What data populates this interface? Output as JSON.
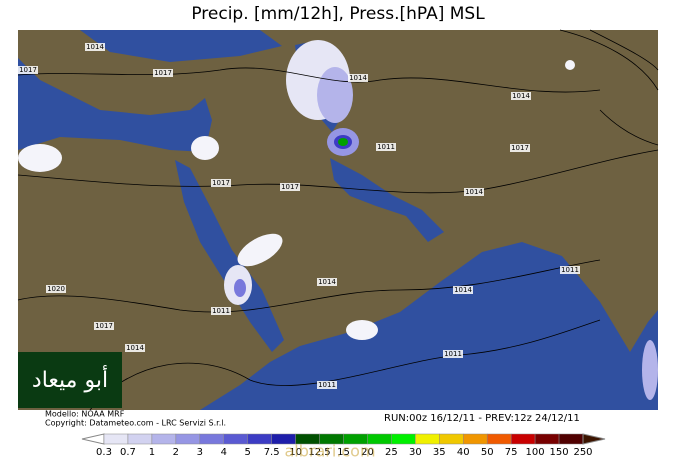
{
  "title": "Precip. [mm/12h], Press.[hPA] MSL",
  "isobar_labels": [
    "1014",
    "1017",
    "1017",
    "1014",
    "1014",
    "1011",
    "1017",
    "1017",
    "1017",
    "1014",
    "1011",
    "1014",
    "1014",
    "1020",
    "1011",
    "1017",
    "1014",
    "1011",
    "1011"
  ],
  "footer": {
    "model": "Modello: NOAA MRF",
    "copyright": "Copyright: Datameteo.com - LRC Servizi S.r.l.",
    "run": "RUN:00z 16/12/11 - PREV:12z 24/12/11"
  },
  "legend": {
    "values": [
      0.3,
      0.7,
      1,
      2,
      3,
      4,
      5,
      7.5,
      10,
      12.5,
      15,
      20,
      25,
      30,
      35,
      40,
      50,
      75,
      100,
      150,
      250
    ],
    "colors": [
      "#ffffff",
      "#e6e6f5",
      "#d2d2f0",
      "#b4b4ea",
      "#9696e4",
      "#7878dc",
      "#5a5ad2",
      "#3c3cc4",
      "#1e1eaa",
      "#005000",
      "#007800",
      "#00a000",
      "#00c800",
      "#00f000",
      "#f0f000",
      "#f0c800",
      "#f09600",
      "#f05a00",
      "#c80000",
      "#780000",
      "#500000",
      "#3c1400"
    ]
  },
  "logo": "أبو ميعاد",
  "watermark": "albrari.com"
}
